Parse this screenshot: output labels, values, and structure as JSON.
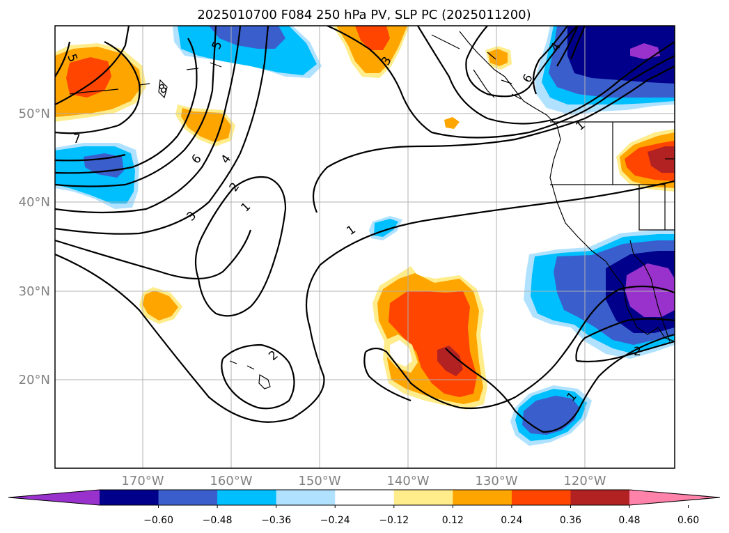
{
  "title": "2025010700 F084 250 hPa PV, SLP PC (2025011200)",
  "map": {
    "lon_labels": [
      "170°W",
      "160°W",
      "150°W",
      "140°W",
      "130°W",
      "120°W"
    ],
    "lat_labels": [
      "50°N",
      "40°N",
      "30°N",
      "20°N"
    ],
    "contour_labels": [
      "5",
      "8",
      "7",
      "6",
      "4",
      "3",
      "2",
      "1",
      "3",
      "5",
      "6",
      "4",
      "1",
      "1",
      "2",
      "2",
      "1"
    ]
  },
  "colorbar": {
    "colors": [
      "#9932CC",
      "#00008B",
      "#3A5FCD",
      "#00BFFF",
      "#B0E2FF",
      "#FFFFFF",
      "#FFEC8B",
      "#FFA500",
      "#FF4500",
      "#B22222",
      "#FF82AB"
    ],
    "tick_labels": [
      "−0.60",
      "−0.48",
      "−0.36",
      "−0.24",
      "−0.12",
      "0.12",
      "0.24",
      "0.36",
      "0.48",
      "0.60"
    ]
  },
  "chart_data": {
    "type": "map",
    "title": "2025010700 F084 250 hPa PV, SLP PC (2025011200)",
    "lon_ticks": [
      -170,
      -160,
      -150,
      -140,
      -130,
      -120
    ],
    "lat_ticks": [
      50,
      40,
      30,
      20
    ],
    "colorbar_levels": [
      -0.6,
      -0.48,
      -0.36,
      -0.24,
      -0.12,
      0.12,
      0.24,
      0.36,
      0.48,
      0.6
    ]
  }
}
